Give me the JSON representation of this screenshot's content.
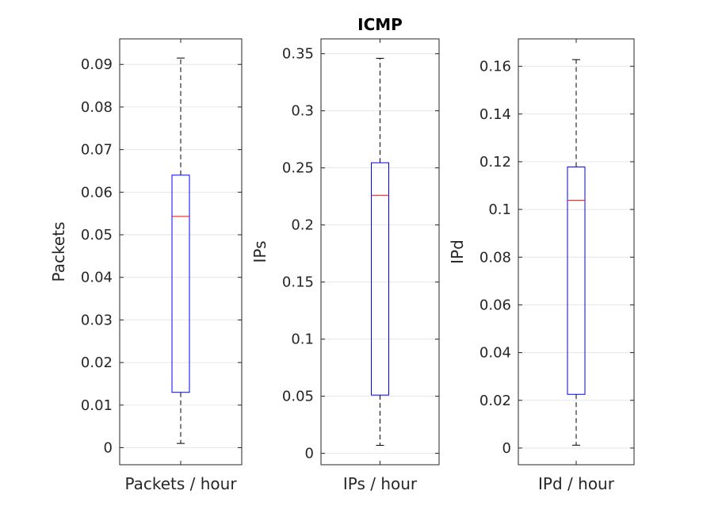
{
  "figure": {
    "title": "ICMP"
  },
  "chart_data": [
    {
      "type": "box",
      "title": "",
      "xlabel": "",
      "ylabel": "Packets",
      "categories": [
        "Packets / hour"
      ],
      "ylim": [
        -0.004,
        0.096
      ],
      "yticks": [
        0,
        0.01,
        0.02,
        0.03,
        0.04,
        0.05,
        0.06,
        0.07,
        0.08,
        0.09
      ],
      "ytick_labels": [
        "0",
        "0.01",
        "0.02",
        "0.03",
        "0.04",
        "0.05",
        "0.06",
        "0.07",
        "0.08",
        "0.09"
      ],
      "grid": true,
      "box": {
        "whisker_low": 0.001,
        "q1": 0.013,
        "median": 0.0543,
        "q3": 0.064,
        "whisker_high": 0.0915
      }
    },
    {
      "type": "box",
      "title": "ICMP",
      "xlabel": "",
      "ylabel": "IPs",
      "categories": [
        "IPs / hour"
      ],
      "ylim": [
        -0.01,
        0.363
      ],
      "yticks": [
        0,
        0.05,
        0.1,
        0.15,
        0.2,
        0.25,
        0.3,
        0.35
      ],
      "ytick_labels": [
        "0",
        "0.05",
        "0.1",
        "0.15",
        "0.2",
        "0.25",
        "0.3",
        "0.35"
      ],
      "grid": true,
      "box": {
        "whisker_low": 0.007,
        "q1": 0.051,
        "median": 0.226,
        "q3": 0.2545,
        "whisker_high": 0.346
      }
    },
    {
      "type": "box",
      "title": "",
      "xlabel": "",
      "ylabel": "IPd",
      "categories": [
        "IPd / hour"
      ],
      "ylim": [
        -0.007,
        0.1715
      ],
      "yticks": [
        0,
        0.02,
        0.04,
        0.06,
        0.08,
        0.1,
        0.12,
        0.14,
        0.16
      ],
      "ytick_labels": [
        "0",
        "0.02",
        "0.04",
        "0.06",
        "0.08",
        "0.1",
        "0.12",
        "0.14",
        "0.16"
      ],
      "grid": true,
      "box": {
        "whisker_low": 0.0012,
        "q1": 0.0225,
        "median": 0.1038,
        "q3": 0.1178,
        "whisker_high": 0.1628
      }
    }
  ],
  "style": {
    "box_color": "#0000ff",
    "median_color": "#ff0000",
    "whisker_color": "#000000",
    "axis_color": "#262626",
    "grid_color": "#e6e6e6"
  }
}
